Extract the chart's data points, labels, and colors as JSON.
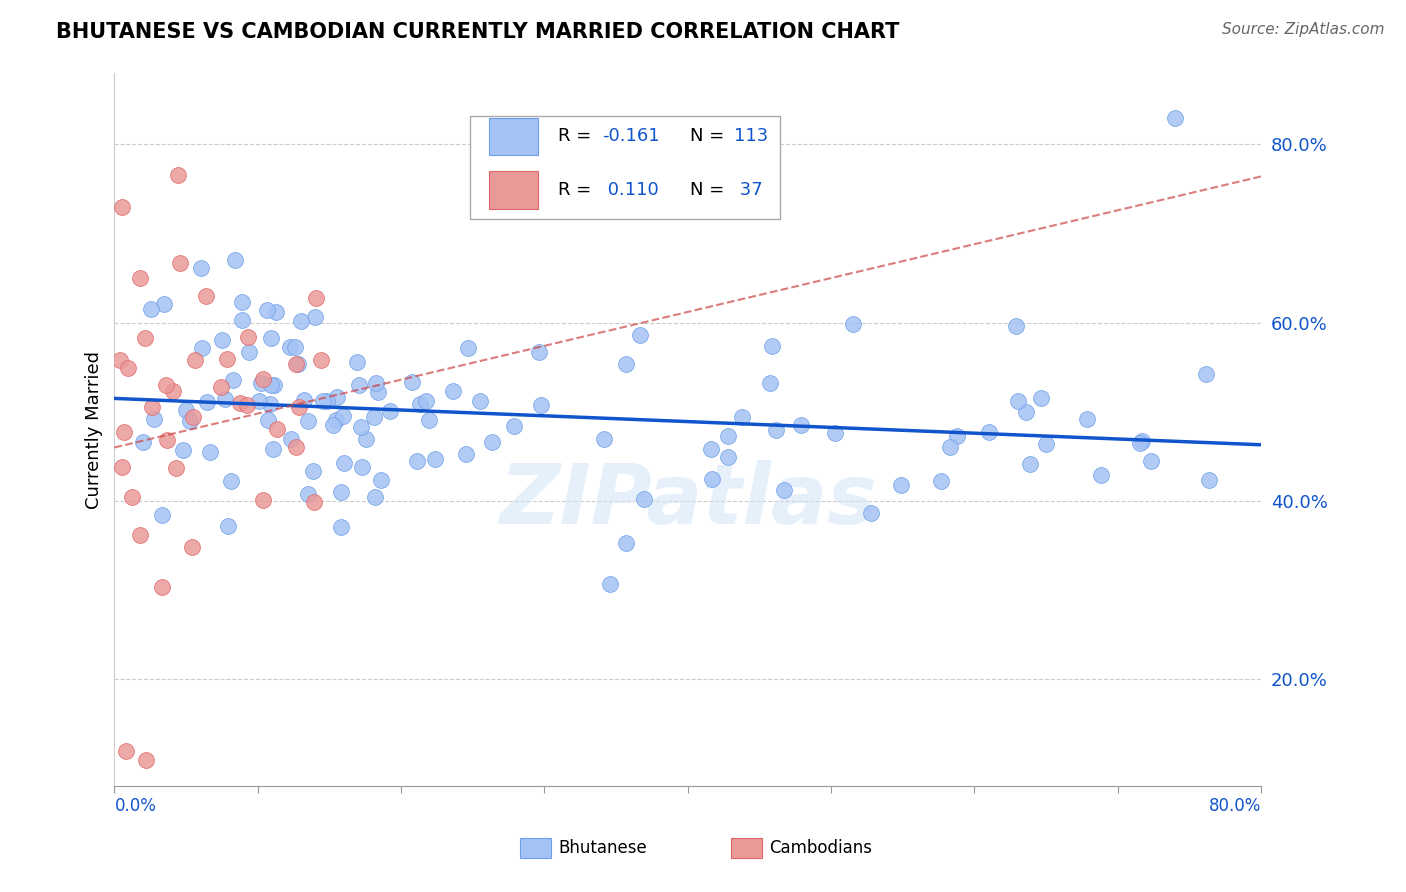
{
  "title": "BHUTANESE VS CAMBODIAN CURRENTLY MARRIED CORRELATION CHART",
  "source": "Source: ZipAtlas.com",
  "ylabel": "Currently Married",
  "xlim": [
    0.0,
    0.8
  ],
  "ylim": [
    0.08,
    0.88
  ],
  "yticks": [
    0.2,
    0.4,
    0.6,
    0.8
  ],
  "blue_R": -0.161,
  "blue_N": 113,
  "pink_R": 0.11,
  "pink_N": 37,
  "blue_color": "#a4c2f4",
  "pink_color": "#ea9999",
  "blue_edge_color": "#6d9eeb",
  "pink_edge_color": "#e06666",
  "blue_line_color": "#1155cc",
  "pink_line_color": "#cc4444",
  "legend_color": "#1155cc",
  "watermark": "ZIPatlas",
  "grid_color": "#cccccc",
  "blue_line_intercept": 0.515,
  "blue_line_slope": -0.065,
  "pink_line_intercept": 0.46,
  "pink_line_slope": 0.38
}
